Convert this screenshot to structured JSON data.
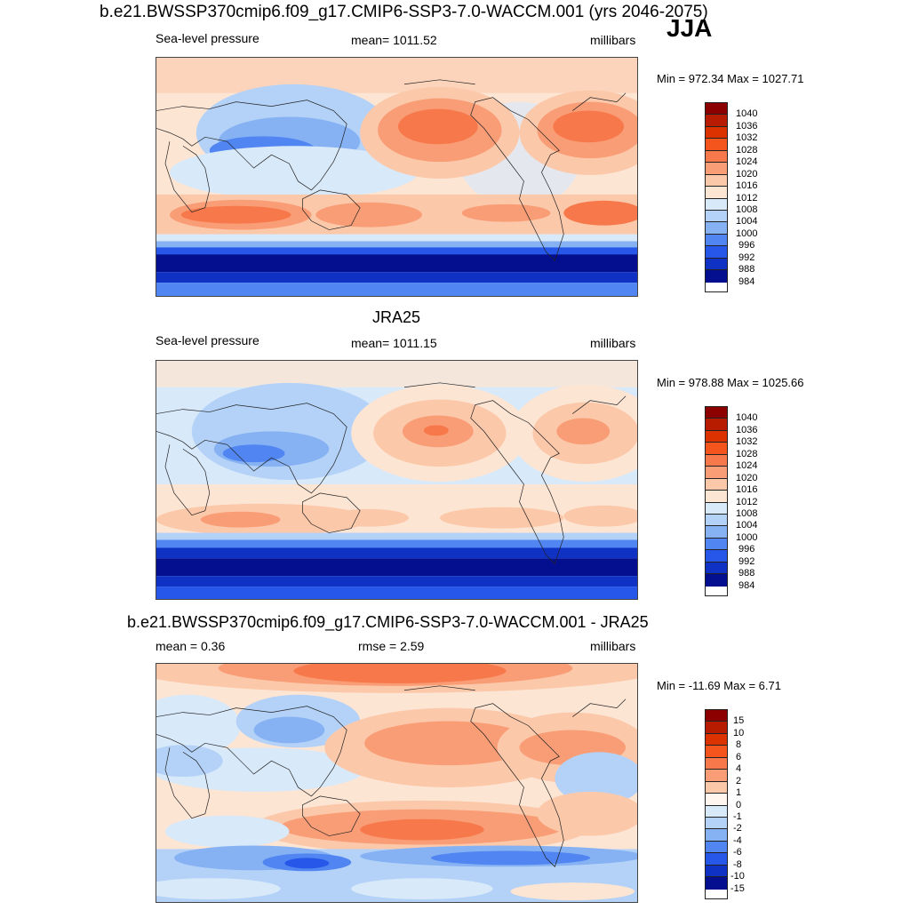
{
  "season": "JJA",
  "units": "millibars",
  "panel1": {
    "title": "b.e21.BWSSP370cmip6.f09_g17.CMIP6-SSP3-7.0-WACCM.001 (yrs 2046-2075)",
    "left": "Sea-level pressure",
    "center": "mean= 1011.52",
    "right": "millibars",
    "minmax": "Min = 972.34 Max = 1027.71"
  },
  "panel2": {
    "title": "JRA25",
    "left": "Sea-level pressure",
    "center": "mean= 1011.15",
    "right": "millibars",
    "minmax": "Min = 978.88 Max = 1025.66"
  },
  "panel3": {
    "title": "b.e21.BWSSP370cmip6.f09_g17.CMIP6-SSP3-7.0-WACCM.001 - JRA25",
    "left": "mean =   0.36",
    "center": "rmse =   2.59",
    "right": "millibars",
    "minmax": "Min = -11.69 Max =   6.71"
  },
  "chart_data": [
    {
      "type": "heatmap",
      "title": "b.e21.BWSSP370cmip6.f09_g17.CMIP6-SSP3-7.0-WACCM.001 (yrs 2046-2075)",
      "variable": "Sea-level pressure",
      "units": "millibars",
      "mean": 1011.52,
      "min": 972.34,
      "max": 1027.71,
      "colorbar_levels": [
        "1040",
        "1036",
        "1032",
        "1028",
        "1024",
        "1020",
        "1016",
        "1012",
        "1008",
        "1004",
        "1000",
        "996",
        "992",
        "988",
        "984"
      ]
    },
    {
      "type": "heatmap",
      "title": "JRA25",
      "variable": "Sea-level pressure",
      "units": "millibars",
      "mean": 1011.15,
      "min": 978.88,
      "max": 1025.66,
      "colorbar_levels": [
        "1040",
        "1036",
        "1032",
        "1028",
        "1024",
        "1020",
        "1016",
        "1012",
        "1008",
        "1004",
        "1000",
        "996",
        "992",
        "988",
        "984"
      ]
    },
    {
      "type": "heatmap",
      "title": "b.e21.BWSSP370cmip6.f09_g17.CMIP6-SSP3-7.0-WACCM.001 - JRA25",
      "units": "millibars",
      "mean": 0.36,
      "rmse": 2.59,
      "min": -11.69,
      "max": 6.71,
      "colorbar_levels": [
        "15",
        "10",
        "8",
        "6",
        "4",
        "2",
        "1",
        "0",
        "-1",
        "-2",
        "-4",
        "-6",
        "-8",
        "-10",
        "-15"
      ]
    }
  ],
  "colorbar_colors": [
    "#8c0000",
    "#b81c00",
    "#dc3200",
    "#f4551c",
    "#f7784a",
    "#f99d76",
    "#fcc8aa",
    "#fde5d4",
    "#d8e9fa",
    "#b4d2f7",
    "#86b2f4",
    "#5085f2",
    "#2757e8",
    "#1032c4",
    "#030f8e"
  ]
}
